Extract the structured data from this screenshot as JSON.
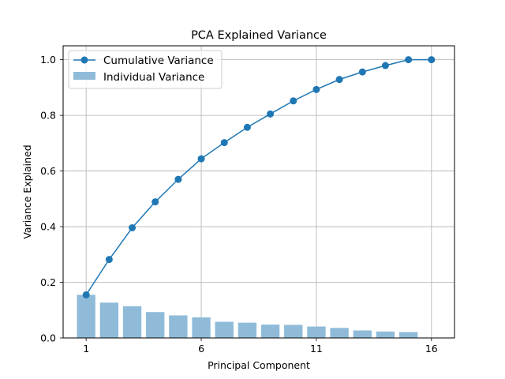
{
  "chart_data": {
    "type": "bar+line",
    "title": "PCA Explained Variance",
    "xlabel": "Principal Component",
    "ylabel": "Variance Explained",
    "x": [
      1,
      2,
      3,
      4,
      5,
      6,
      7,
      8,
      9,
      10,
      11,
      12,
      13,
      14,
      15,
      16
    ],
    "xticks": [
      1,
      6,
      11,
      16
    ],
    "xlim": [
      0.0,
      17.0
    ],
    "yticks": [
      0.0,
      0.2,
      0.4,
      0.6,
      0.8,
      1.0
    ],
    "yticklabels": [
      "0.0",
      "0.2",
      "0.4",
      "0.6",
      "0.8",
      "1.0"
    ],
    "ylim": [
      0.0,
      1.05
    ],
    "grid": true,
    "legend_position": "top-left",
    "series": [
      {
        "name": "Cumulative Variance",
        "kind": "line",
        "marker": "circle",
        "color": "#1f77b4",
        "values": [
          0.155,
          0.282,
          0.396,
          0.489,
          0.57,
          0.644,
          0.702,
          0.757,
          0.805,
          0.852,
          0.893,
          0.929,
          0.956,
          0.979,
          1.0,
          1.0
        ]
      },
      {
        "name": "Individual Variance",
        "kind": "bar",
        "color": "#8fbbd9",
        "values": [
          0.155,
          0.127,
          0.114,
          0.093,
          0.081,
          0.074,
          0.058,
          0.055,
          0.048,
          0.047,
          0.041,
          0.036,
          0.027,
          0.023,
          0.021,
          0.0
        ]
      }
    ]
  }
}
